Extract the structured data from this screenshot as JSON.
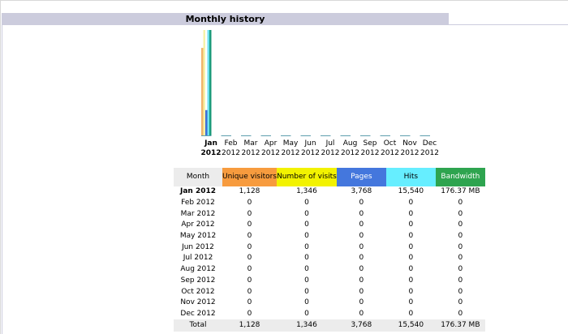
{
  "section": {
    "title": "Monthly history"
  },
  "colors": {
    "unique_visitors": "#f79b3e",
    "number_of_visits": "#f2f200",
    "pages": "#4477dd",
    "hits": "#66eeff",
    "bandwidth": "#2ea44f",
    "header_bar": "#ccccdd"
  },
  "chart_data": {
    "type": "bar",
    "categories": [
      [
        "Jan",
        "2012"
      ],
      [
        "Feb",
        "2012"
      ],
      [
        "Mar",
        "2012"
      ],
      [
        "Apr",
        "2012"
      ],
      [
        "May",
        "2012"
      ],
      [
        "Jun",
        "2012"
      ],
      [
        "Jul",
        "2012"
      ],
      [
        "Aug",
        "2012"
      ],
      [
        "Sep",
        "2012"
      ],
      [
        "Oct",
        "2012"
      ],
      [
        "Nov",
        "2012"
      ],
      [
        "Dec",
        "2012"
      ]
    ],
    "current_index": 0,
    "series": [
      {
        "name": "Unique visitors",
        "color": "#f0b56a",
        "values": [
          1128,
          0,
          0,
          0,
          0,
          0,
          0,
          0,
          0,
          0,
          0,
          0
        ]
      },
      {
        "name": "Number of visits",
        "color": "#f6f2a8",
        "values": [
          1346,
          0,
          0,
          0,
          0,
          0,
          0,
          0,
          0,
          0,
          0,
          0
        ]
      },
      {
        "name": "Pages",
        "color": "#3f6fd8",
        "values": [
          3768,
          0,
          0,
          0,
          0,
          0,
          0,
          0,
          0,
          0,
          0,
          0
        ]
      },
      {
        "name": "Hits",
        "color": "#6fe2f0",
        "values": [
          15540,
          0,
          0,
          0,
          0,
          0,
          0,
          0,
          0,
          0,
          0,
          0
        ]
      },
      {
        "name": "Bandwidth",
        "color": "#1a9a7a",
        "values": [
          176.37,
          0,
          0,
          0,
          0,
          0,
          0,
          0,
          0,
          0,
          0,
          0
        ]
      }
    ]
  },
  "table": {
    "headers": {
      "month": "Month",
      "unique_visitors": "Unique visitors",
      "number_of_visits": "Number of visits",
      "pages": "Pages",
      "hits": "Hits",
      "bandwidth": "Bandwidth"
    },
    "rows": [
      {
        "month": "Jan 2012",
        "unique": "1,128",
        "visits": "1,346",
        "pages": "3,768",
        "hits": "15,540",
        "bandwidth": "176.37 MB"
      },
      {
        "month": "Feb 2012",
        "unique": "0",
        "visits": "0",
        "pages": "0",
        "hits": "0",
        "bandwidth": "0"
      },
      {
        "month": "Mar 2012",
        "unique": "0",
        "visits": "0",
        "pages": "0",
        "hits": "0",
        "bandwidth": "0"
      },
      {
        "month": "Apr 2012",
        "unique": "0",
        "visits": "0",
        "pages": "0",
        "hits": "0",
        "bandwidth": "0"
      },
      {
        "month": "May 2012",
        "unique": "0",
        "visits": "0",
        "pages": "0",
        "hits": "0",
        "bandwidth": "0"
      },
      {
        "month": "Jun 2012",
        "unique": "0",
        "visits": "0",
        "pages": "0",
        "hits": "0",
        "bandwidth": "0"
      },
      {
        "month": "Jul 2012",
        "unique": "0",
        "visits": "0",
        "pages": "0",
        "hits": "0",
        "bandwidth": "0"
      },
      {
        "month": "Aug 2012",
        "unique": "0",
        "visits": "0",
        "pages": "0",
        "hits": "0",
        "bandwidth": "0"
      },
      {
        "month": "Sep 2012",
        "unique": "0",
        "visits": "0",
        "pages": "0",
        "hits": "0",
        "bandwidth": "0"
      },
      {
        "month": "Oct 2012",
        "unique": "0",
        "visits": "0",
        "pages": "0",
        "hits": "0",
        "bandwidth": "0"
      },
      {
        "month": "Nov 2012",
        "unique": "0",
        "visits": "0",
        "pages": "0",
        "hits": "0",
        "bandwidth": "0"
      },
      {
        "month": "Dec 2012",
        "unique": "0",
        "visits": "0",
        "pages": "0",
        "hits": "0",
        "bandwidth": "0"
      }
    ],
    "total": {
      "month": "Total",
      "unique": "1,128",
      "visits": "1,346",
      "pages": "3,768",
      "hits": "15,540",
      "bandwidth": "176.37 MB"
    }
  }
}
